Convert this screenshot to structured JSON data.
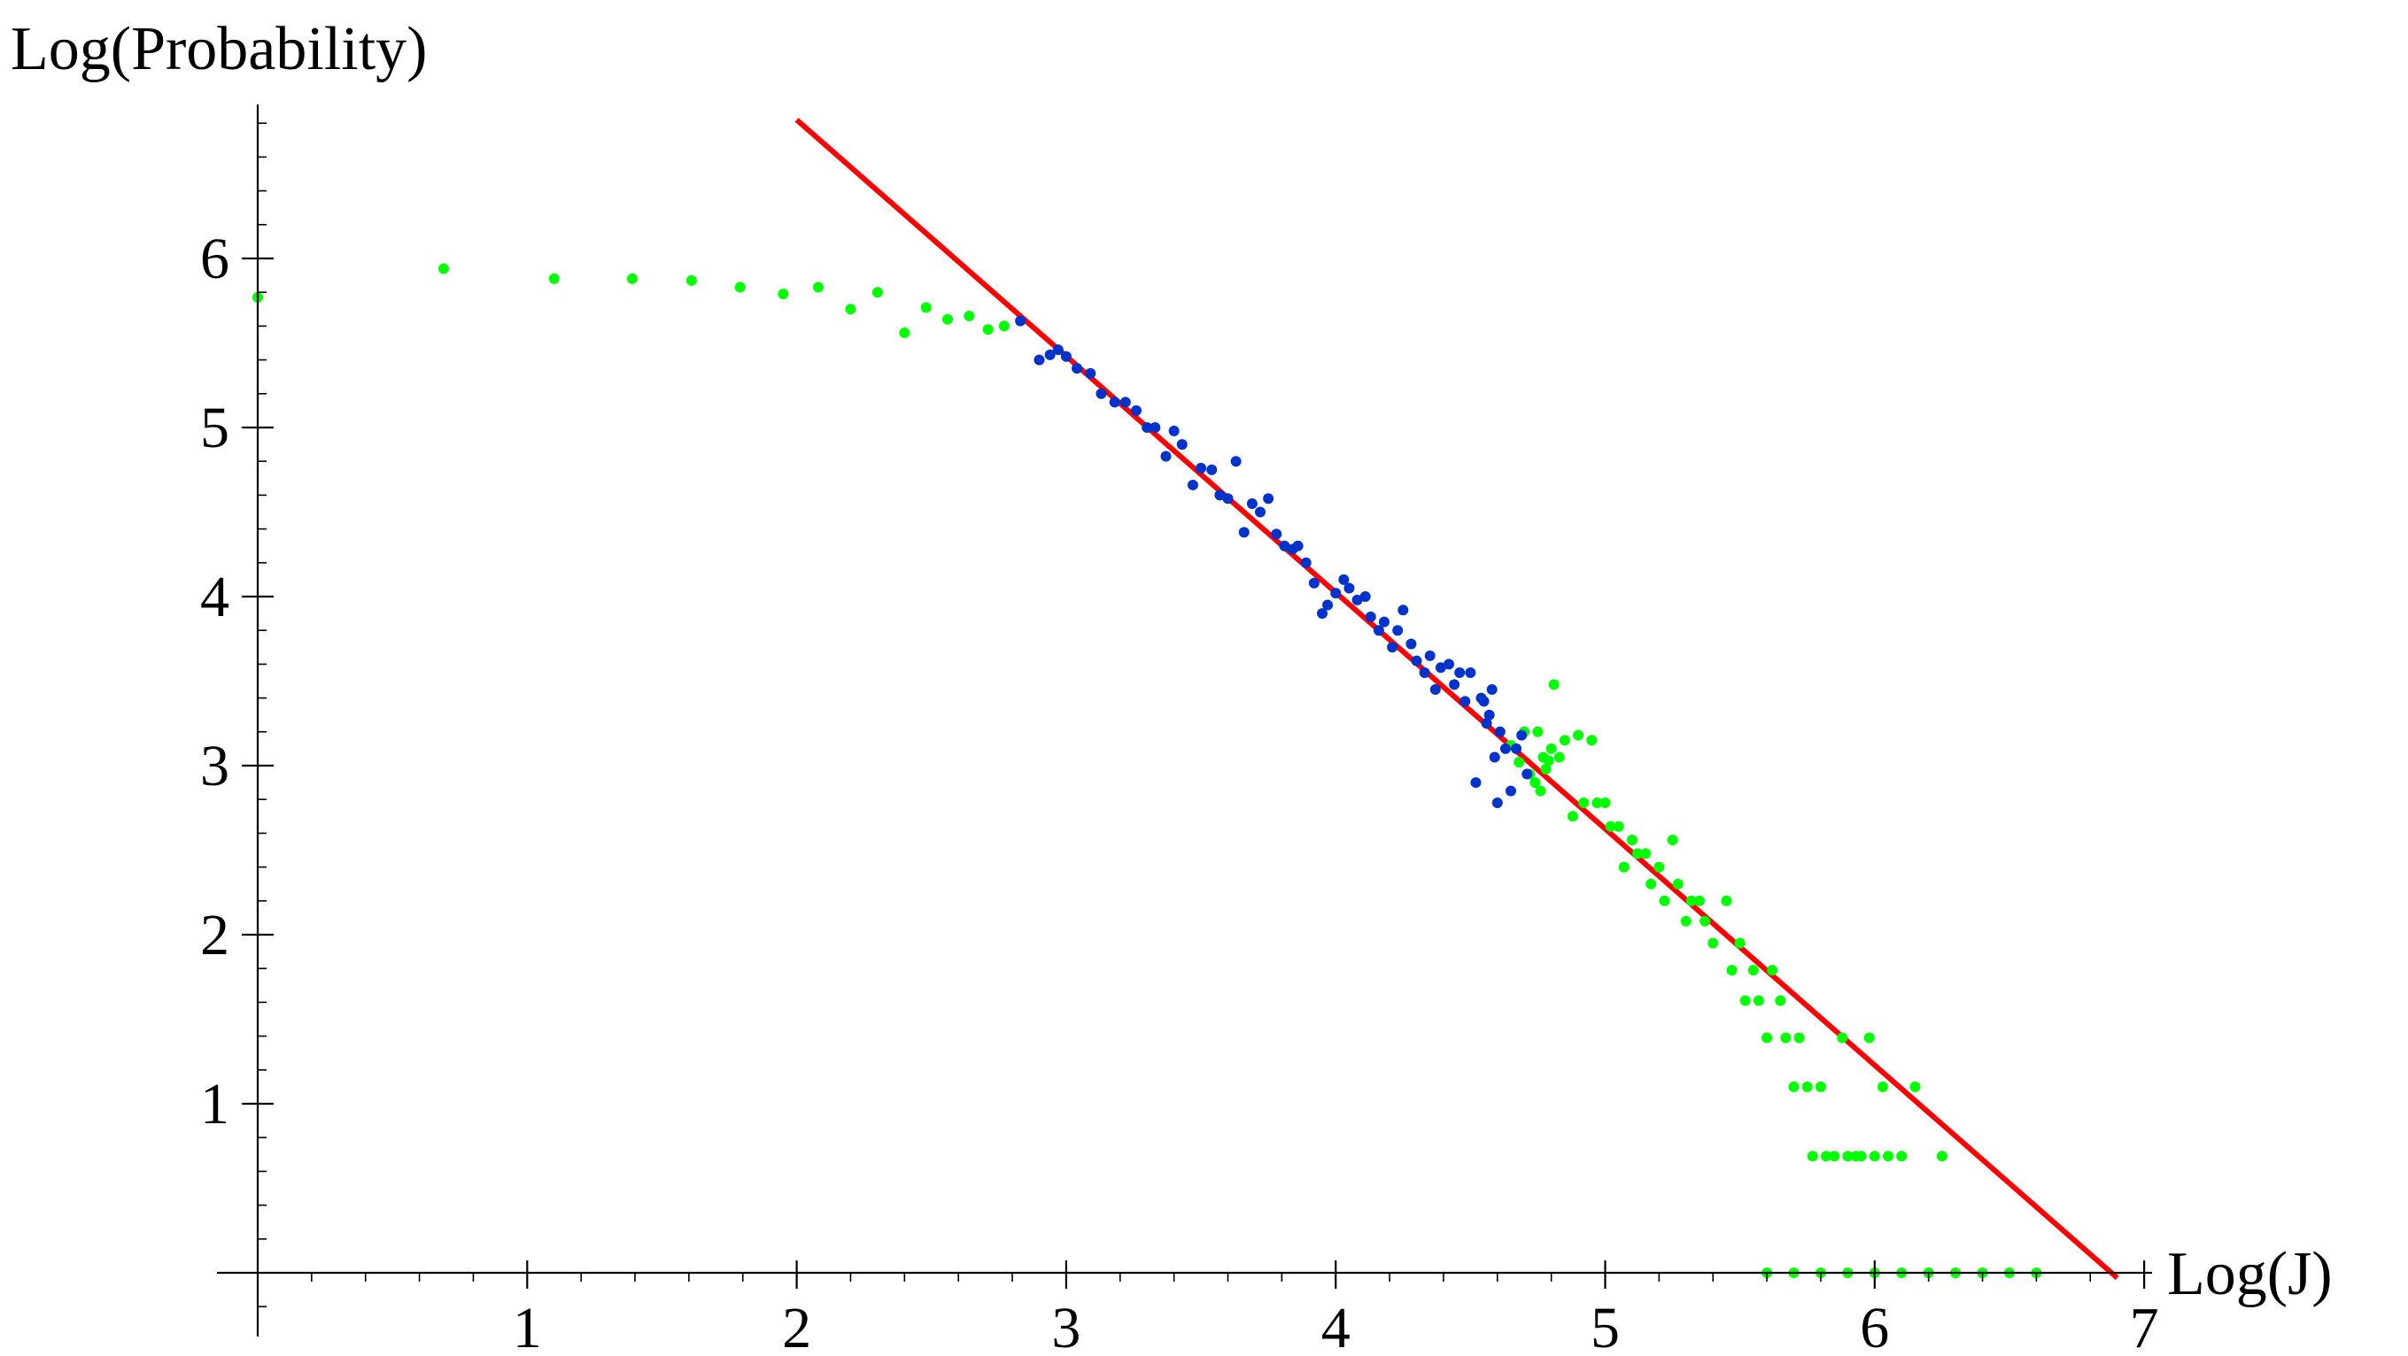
{
  "chart_data": {
    "type": "scatter",
    "xlabel": "Log(J)",
    "ylabel": "Log(Probability)",
    "xlim": [
      0,
      7.1
    ],
    "ylim": [
      -0.3,
      6.9
    ],
    "x_ticks": [
      1,
      2,
      3,
      4,
      5,
      6,
      7
    ],
    "x_tick_labels": [
      "1",
      "2",
      "3",
      "4",
      "5",
      "6",
      "7"
    ],
    "y_ticks": [
      1,
      2,
      3,
      4,
      5,
      6
    ],
    "y_tick_labels": [
      "1",
      "2",
      "3",
      "4",
      "5",
      "6"
    ],
    "grid": false,
    "legend": "none",
    "fit_line": {
      "color": "#ff0000",
      "points": [
        [
          2.0,
          6.82
        ],
        [
          6.9,
          -0.03
        ]
      ]
    },
    "series": [
      {
        "color": "#00ff00",
        "points": [
          [
            0.0,
            5.77
          ],
          [
            0.69,
            5.94
          ],
          [
            1.1,
            5.88
          ],
          [
            1.39,
            5.88
          ],
          [
            1.61,
            5.87
          ],
          [
            1.79,
            5.83
          ],
          [
            1.95,
            5.79
          ],
          [
            2.08,
            5.83
          ],
          [
            2.2,
            5.7
          ],
          [
            2.3,
            5.8
          ],
          [
            2.4,
            5.56
          ],
          [
            2.48,
            5.71
          ],
          [
            2.56,
            5.64
          ],
          [
            2.64,
            5.66
          ],
          [
            2.71,
            5.58
          ],
          [
            2.77,
            5.6
          ],
          [
            4.65,
            3.12
          ],
          [
            4.68,
            3.02
          ],
          [
            4.7,
            3.2
          ],
          [
            4.72,
            2.95
          ],
          [
            4.74,
            2.9
          ],
          [
            4.75,
            3.2
          ],
          [
            4.76,
            2.85
          ],
          [
            4.77,
            3.05
          ],
          [
            4.78,
            2.98
          ],
          [
            4.79,
            3.03
          ],
          [
            4.8,
            3.1
          ],
          [
            4.81,
            3.48
          ],
          [
            4.83,
            3.05
          ],
          [
            4.85,
            3.15
          ],
          [
            4.88,
            2.7
          ],
          [
            4.9,
            3.18
          ],
          [
            4.92,
            2.78
          ],
          [
            4.95,
            3.15
          ],
          [
            4.97,
            2.78
          ],
          [
            5.0,
            2.78
          ],
          [
            5.02,
            2.64
          ],
          [
            5.05,
            2.64
          ],
          [
            5.07,
            2.4
          ],
          [
            5.1,
            2.56
          ],
          [
            5.12,
            2.48
          ],
          [
            5.15,
            2.48
          ],
          [
            5.17,
            2.3
          ],
          [
            5.2,
            2.4
          ],
          [
            5.22,
            2.2
          ],
          [
            5.25,
            2.56
          ],
          [
            5.27,
            2.3
          ],
          [
            5.3,
            2.08
          ],
          [
            5.32,
            2.2
          ],
          [
            5.35,
            2.2
          ],
          [
            5.37,
            2.08
          ],
          [
            5.4,
            1.95
          ],
          [
            5.45,
            2.2
          ],
          [
            5.47,
            1.79
          ],
          [
            5.5,
            1.95
          ],
          [
            5.52,
            1.61
          ],
          [
            5.55,
            1.79
          ],
          [
            5.57,
            1.61
          ],
          [
            5.6,
            1.39
          ],
          [
            5.62,
            1.79
          ],
          [
            5.65,
            1.61
          ],
          [
            5.67,
            1.39
          ],
          [
            5.7,
            1.1
          ],
          [
            5.72,
            1.39
          ],
          [
            5.75,
            1.1
          ],
          [
            5.77,
            0.69
          ],
          [
            5.8,
            1.1
          ],
          [
            5.82,
            0.69
          ],
          [
            5.85,
            0.69
          ],
          [
            5.88,
            1.39
          ],
          [
            5.9,
            0.69
          ],
          [
            5.93,
            0.69
          ],
          [
            5.95,
            0.69
          ],
          [
            5.98,
            1.39
          ],
          [
            6.0,
            0.69
          ],
          [
            6.03,
            1.1
          ],
          [
            6.05,
            0.69
          ],
          [
            6.1,
            0.69
          ],
          [
            6.15,
            1.1
          ],
          [
            6.2,
            0.0
          ],
          [
            6.25,
            0.69
          ],
          [
            6.3,
            0.0
          ],
          [
            5.6,
            0.0
          ],
          [
            5.7,
            0.0
          ],
          [
            5.8,
            0.0
          ],
          [
            5.9,
            0.0
          ],
          [
            6.0,
            0.0
          ],
          [
            6.1,
            0.0
          ],
          [
            6.4,
            0.0
          ],
          [
            6.5,
            0.0
          ],
          [
            6.6,
            0.0
          ]
        ]
      },
      {
        "color": "#0033cc",
        "points": [
          [
            2.83,
            5.63
          ],
          [
            2.9,
            5.4
          ],
          [
            2.94,
            5.43
          ],
          [
            2.97,
            5.46
          ],
          [
            3.0,
            5.42
          ],
          [
            3.04,
            5.35
          ],
          [
            3.09,
            5.32
          ],
          [
            3.13,
            5.2
          ],
          [
            3.18,
            5.15
          ],
          [
            3.22,
            5.15
          ],
          [
            3.26,
            5.1
          ],
          [
            3.3,
            5.0
          ],
          [
            3.33,
            5.0
          ],
          [
            3.37,
            4.83
          ],
          [
            3.4,
            4.98
          ],
          [
            3.43,
            4.9
          ],
          [
            3.47,
            4.66
          ],
          [
            3.5,
            4.76
          ],
          [
            3.54,
            4.75
          ],
          [
            3.57,
            4.6
          ],
          [
            3.6,
            4.58
          ],
          [
            3.63,
            4.8
          ],
          [
            3.66,
            4.38
          ],
          [
            3.69,
            4.55
          ],
          [
            3.72,
            4.5
          ],
          [
            3.75,
            4.58
          ],
          [
            3.78,
            4.37
          ],
          [
            3.81,
            4.3
          ],
          [
            3.84,
            4.28
          ],
          [
            3.86,
            4.3
          ],
          [
            3.89,
            4.2
          ],
          [
            3.92,
            4.08
          ],
          [
            3.95,
            3.9
          ],
          [
            3.97,
            3.95
          ],
          [
            4.0,
            4.02
          ],
          [
            4.03,
            4.1
          ],
          [
            4.05,
            4.05
          ],
          [
            4.08,
            3.98
          ],
          [
            4.11,
            4.0
          ],
          [
            4.13,
            3.88
          ],
          [
            4.16,
            3.8
          ],
          [
            4.18,
            3.85
          ],
          [
            4.21,
            3.7
          ],
          [
            4.23,
            3.8
          ],
          [
            4.25,
            3.92
          ],
          [
            4.28,
            3.72
          ],
          [
            4.3,
            3.62
          ],
          [
            4.33,
            3.55
          ],
          [
            4.35,
            3.65
          ],
          [
            4.37,
            3.45
          ],
          [
            4.39,
            3.58
          ],
          [
            4.42,
            3.6
          ],
          [
            4.44,
            3.48
          ],
          [
            4.46,
            3.55
          ],
          [
            4.48,
            3.38
          ],
          [
            4.5,
            3.55
          ],
          [
            4.52,
            2.9
          ],
          [
            4.55,
            3.38
          ],
          [
            4.57,
            3.3
          ],
          [
            4.59,
            3.05
          ],
          [
            4.61,
            3.2
          ],
          [
            4.63,
            3.1
          ],
          [
            4.65,
            2.85
          ],
          [
            4.67,
            3.1
          ],
          [
            4.69,
            3.18
          ],
          [
            4.71,
            2.95
          ],
          [
            4.6,
            2.78
          ],
          [
            4.58,
            3.45
          ],
          [
            4.56,
            3.25
          ],
          [
            4.54,
            3.4
          ]
        ]
      }
    ]
  }
}
